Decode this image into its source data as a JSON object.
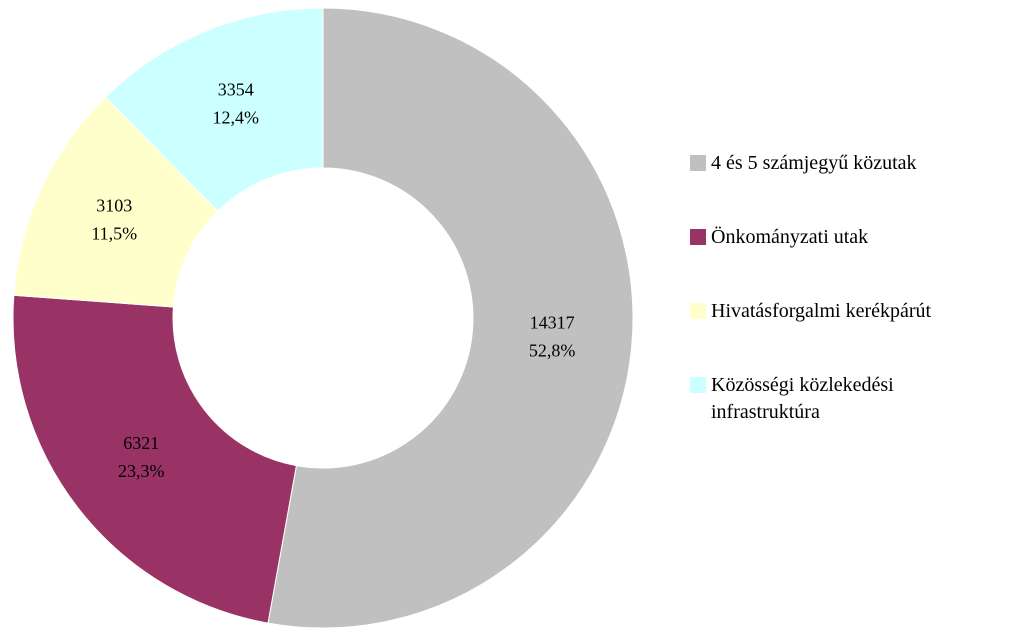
{
  "chart_data": {
    "type": "donut",
    "categories": [
      "4 és 5 számjegyű közutak",
      "Önkományzati utak",
      "Hivatásforgalmi kerékpárút",
      "Közösségi közlekedési infrastruktúra"
    ],
    "values": [
      14317,
      6321,
      3103,
      3354
    ],
    "shares": [
      52.8,
      23.3,
      11.5,
      12.4
    ],
    "share_labels": [
      "52,8%",
      "23,3%",
      "11,5%",
      "12,4%"
    ],
    "colors": [
      "#c0c0c0",
      "#993366",
      "#ffffcc",
      "#ccffff"
    ],
    "legend": "right"
  }
}
